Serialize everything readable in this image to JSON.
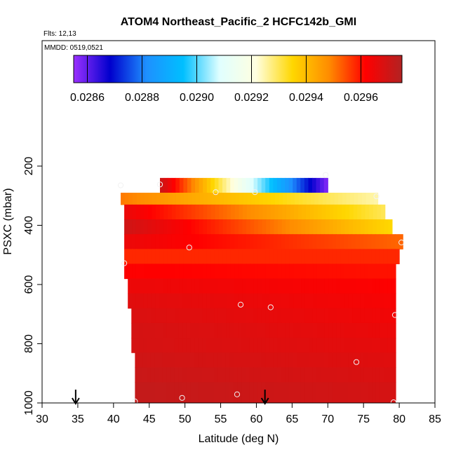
{
  "chart_data": {
    "type": "heatmap",
    "title": "ATOM4 Northeast_Pacific_2 HCFC142b_GMI",
    "flights_text": "Flts: 12,13",
    "mmdd_text": "MMDD: 0519,0521",
    "xlabel": "Latitude (deg N)",
    "ylabel": "PSXC (mbar)",
    "xlim": [
      30,
      85
    ],
    "ylim": [
      1000,
      100
    ],
    "x_ticks": [
      30,
      35,
      40,
      45,
      50,
      55,
      60,
      65,
      70,
      75,
      80,
      85
    ],
    "y_ticks": [
      200,
      400,
      600,
      800,
      1000
    ],
    "colorbar": {
      "range": [
        0.02855,
        0.02975
      ],
      "ticks": [
        "0.0286",
        "0.0288",
        "0.0290",
        "0.0292",
        "0.0294",
        "0.0296"
      ],
      "tick_values": [
        0.0286,
        0.0288,
        0.029,
        0.0292,
        0.0294,
        0.0296
      ],
      "colors": [
        "#9b30ff",
        "#0000cd",
        "#1e90ff",
        "#00bfff",
        "#e0ffff",
        "#ffffe0",
        "#ffd700",
        "#ff8c00",
        "#ff0000",
        "#b22222"
      ]
    },
    "rows": [
      {
        "p_top": 240,
        "p_bot": 290,
        "lat_min": 46.5,
        "lat_max": 70.0,
        "start": 0.0297,
        "end": 0.02858
      },
      {
        "p_top": 290,
        "p_bot": 330,
        "lat_min": 41.0,
        "lat_max": 77.0,
        "start": 0.0295,
        "end": 0.02925
      },
      {
        "p_top": 330,
        "p_bot": 380,
        "lat_min": 41.5,
        "lat_max": 78.0,
        "start": 0.02965,
        "end": 0.0293
      },
      {
        "p_top": 380,
        "p_bot": 430,
        "lat_min": 41.5,
        "lat_max": 79.0,
        "start": 0.0297,
        "end": 0.02935
      },
      {
        "p_top": 430,
        "p_bot": 480,
        "lat_min": 41.5,
        "lat_max": 80.5,
        "start": 0.02965,
        "end": 0.02952
      },
      {
        "p_top": 480,
        "p_bot": 530,
        "lat_min": 41.5,
        "lat_max": 80.0,
        "start": 0.02958,
        "end": 0.02958
      },
      {
        "p_top": 530,
        "p_bot": 580,
        "lat_min": 41.5,
        "lat_max": 79.5,
        "start": 0.02962,
        "end": 0.0296
      },
      {
        "p_top": 580,
        "p_bot": 630,
        "lat_min": 42.0,
        "lat_max": 79.5,
        "start": 0.02965,
        "end": 0.02962
      },
      {
        "p_top": 630,
        "p_bot": 680,
        "lat_min": 42.0,
        "lat_max": 79.5,
        "start": 0.02967,
        "end": 0.02963
      },
      {
        "p_top": 680,
        "p_bot": 730,
        "lat_min": 42.5,
        "lat_max": 79.5,
        "start": 0.02968,
        "end": 0.02964
      },
      {
        "p_top": 730,
        "p_bot": 780,
        "lat_min": 42.5,
        "lat_max": 79.5,
        "start": 0.02969,
        "end": 0.02965
      },
      {
        "p_top": 780,
        "p_bot": 830,
        "lat_min": 42.5,
        "lat_max": 79.5,
        "start": 0.02969,
        "end": 0.02966
      },
      {
        "p_top": 830,
        "p_bot": 880,
        "lat_min": 43.0,
        "lat_max": 79.5,
        "start": 0.0297,
        "end": 0.02967
      },
      {
        "p_top": 880,
        "p_bot": 930,
        "lat_min": 43.0,
        "lat_max": 79.5,
        "start": 0.02971,
        "end": 0.02968
      },
      {
        "p_top": 930,
        "p_bot": 1000,
        "lat_min": 43.0,
        "lat_max": 79.5,
        "start": 0.02972,
        "end": 0.02969
      }
    ],
    "points": [
      {
        "lat": 69.7,
        "p": 230
      },
      {
        "lat": 41.0,
        "p": 265
      },
      {
        "lat": 46.5,
        "p": 262
      },
      {
        "lat": 54.3,
        "p": 288
      },
      {
        "lat": 59.8,
        "p": 288
      },
      {
        "lat": 76.8,
        "p": 302
      },
      {
        "lat": 80.3,
        "p": 458
      },
      {
        "lat": 50.6,
        "p": 475
      },
      {
        "lat": 41.5,
        "p": 528
      },
      {
        "lat": 57.8,
        "p": 668
      },
      {
        "lat": 62.0,
        "p": 677
      },
      {
        "lat": 79.4,
        "p": 703
      },
      {
        "lat": 74.0,
        "p": 862
      },
      {
        "lat": 57.3,
        "p": 971
      },
      {
        "lat": 49.6,
        "p": 983
      },
      {
        "lat": 43.0,
        "p": 995
      },
      {
        "lat": 79.2,
        "p": 998
      }
    ],
    "arrows": [
      {
        "lat": 34.7
      },
      {
        "lat": 61.2
      }
    ]
  }
}
